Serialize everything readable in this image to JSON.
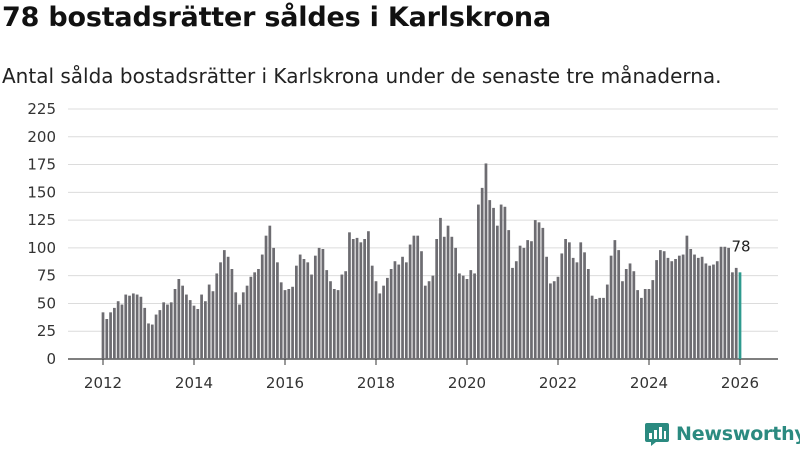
{
  "header": {
    "title": "78 bostadsrätter såldes i Karlskrona",
    "subtitle": "Antal sålda bostadsrätter i Karlskrona under de senaste tre månaderna."
  },
  "brand": {
    "name": "Newsworthy",
    "icon": "bar-chart-logo-icon"
  },
  "colors": {
    "bar": "#6d6c71",
    "highlight": "#2e9a8e",
    "grid": "#dcdcdc",
    "brand": "#2b8a80"
  },
  "chart_data": {
    "type": "bar",
    "title": "78 bostadsrätter såldes i Karlskrona",
    "ylim": [
      0,
      225
    ],
    "yticks": [
      "0",
      "25",
      "50",
      "75",
      "100",
      "125",
      "150",
      "175",
      "200",
      "225"
    ],
    "xticks": [
      "2012",
      "2014",
      "2016",
      "2018",
      "2020",
      "2022",
      "2024",
      "2026"
    ],
    "x_start": "2012-01",
    "x_end": "2026-02",
    "grid": true,
    "highlight_label": "78",
    "values": [
      42,
      36,
      42,
      46,
      52,
      49,
      58,
      57,
      59,
      58,
      56,
      46,
      32,
      31,
      40,
      44,
      51,
      49,
      51,
      63,
      72,
      66,
      58,
      53,
      48,
      45,
      58,
      52,
      67,
      61,
      77,
      87,
      98,
      92,
      81,
      60,
      49,
      60,
      66,
      74,
      78,
      81,
      94,
      111,
      120,
      100,
      87,
      69,
      62,
      63,
      65,
      84,
      94,
      90,
      87,
      76,
      93,
      100,
      99,
      80,
      70,
      63,
      62,
      76,
      79,
      114,
      108,
      109,
      105,
      108,
      115,
      84,
      70,
      59,
      66,
      73,
      81,
      88,
      85,
      92,
      87,
      103,
      111,
      111,
      97,
      66,
      70,
      75,
      108,
      127,
      110,
      120,
      110,
      100,
      77,
      75,
      72,
      80,
      77,
      139,
      154,
      176,
      143,
      136,
      120,
      139,
      137,
      116,
      82,
      88,
      102,
      100,
      107,
      106,
      125,
      123,
      118,
      92,
      68,
      70,
      74,
      95,
      108,
      105,
      91,
      87,
      105,
      96,
      81,
      57,
      54,
      55,
      55,
      67,
      93,
      107,
      98,
      70,
      81,
      86,
      79,
      62,
      55,
      63,
      63,
      71,
      89,
      98,
      97,
      91,
      88,
      90,
      93,
      94,
      111,
      99,
      94,
      91,
      92,
      86,
      84,
      85,
      88,
      101,
      101,
      100,
      78,
      82,
      78
    ]
  }
}
